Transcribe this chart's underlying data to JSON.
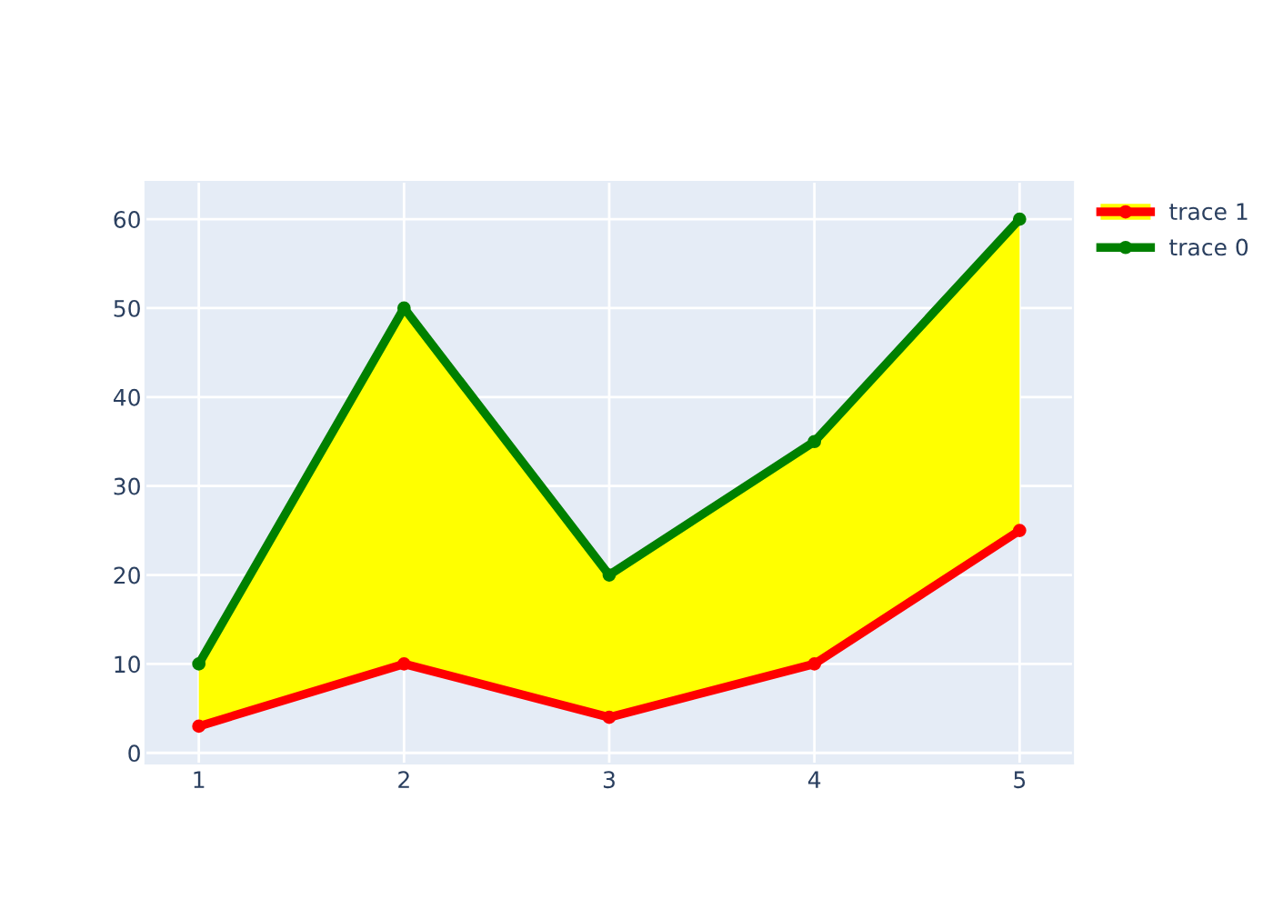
{
  "chart_data": {
    "type": "line",
    "x": [
      1,
      2,
      3,
      4,
      5
    ],
    "xlim": [
      0.74,
      5.26
    ],
    "xticks": [
      1,
      2,
      3,
      4,
      5
    ],
    "ylim": [
      -1.2,
      64.2
    ],
    "yticks": [
      0,
      10,
      20,
      30,
      40,
      50,
      60
    ],
    "grid": true,
    "legend": "top right",
    "marker": "circle",
    "line_style": "solid",
    "series": [
      {
        "name": "trace 1",
        "color": "#ff0000",
        "values": [
          3,
          10,
          4,
          10,
          25
        ],
        "lower": [
          3,
          10,
          4,
          10,
          25
        ],
        "upper": [
          10,
          50,
          20,
          35,
          60
        ]
      },
      {
        "name": "trace 0",
        "color": "#008000",
        "values": [
          10,
          50,
          20,
          35,
          60
        ]
      }
    ]
  }
}
